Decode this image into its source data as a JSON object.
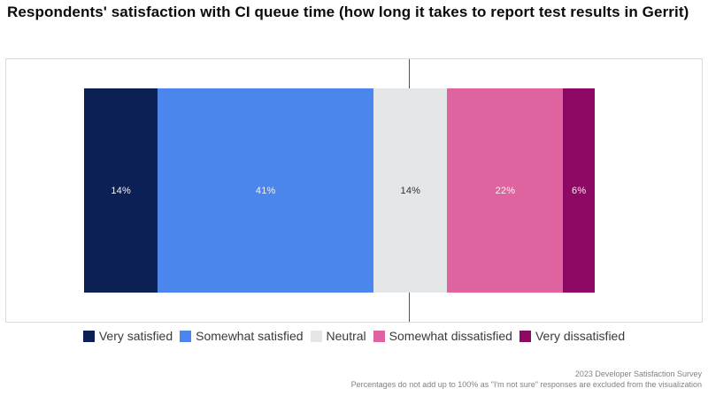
{
  "title": "Respondents' satisfaction with CI queue time (how long it takes to report test results in Gerrit)",
  "chart_data": {
    "type": "bar",
    "subtype": "horizontal-diverging-stacked",
    "title": "Respondents' satisfaction with CI queue time (how long it takes to report test results in Gerrit)",
    "categories": [
      "Very satisfied",
      "Somewhat satisfied",
      "Neutral",
      "Somewhat dissatisfied",
      "Very dissatisfied"
    ],
    "values": [
      14,
      41,
      14,
      22,
      6
    ],
    "unit": "%",
    "legend_position": "bottom",
    "grid": false,
    "center_reference_line": "vertical line through middle of Neutral segment",
    "segments": [
      {
        "label": "Very satisfied",
        "value": 14,
        "display": "14%",
        "color": "#0d2055",
        "text_color": "#f3f4fa"
      },
      {
        "label": "Somewhat satisfied",
        "value": 41,
        "display": "41%",
        "color": "#4a86ec",
        "text_color": "#eef3fd"
      },
      {
        "label": "Neutral",
        "value": 14,
        "display": "14%",
        "color": "#e4e6e8",
        "text_color": "#333333"
      },
      {
        "label": "Somewhat dissatisfied",
        "value": 22,
        "display": "22%",
        "color": "#df639e",
        "text_color": "#fbeff5"
      },
      {
        "label": "Very dissatisfied",
        "value": 6,
        "display": "6%",
        "color": "#8e0963",
        "text_color": "#f6e9f1"
      }
    ]
  },
  "footer": {
    "line1": "2023 Developer Satisfaction Survey",
    "line2": "Percentages do not add up to 100% as \"I'm not sure\" responses are excluded from the visualization"
  },
  "colors": {
    "panel_border": "#dadada",
    "center_line": "#555555",
    "legend_text": "#3a3a3a",
    "footer_text": "#828282",
    "title_text": "#0b0b0b"
  }
}
